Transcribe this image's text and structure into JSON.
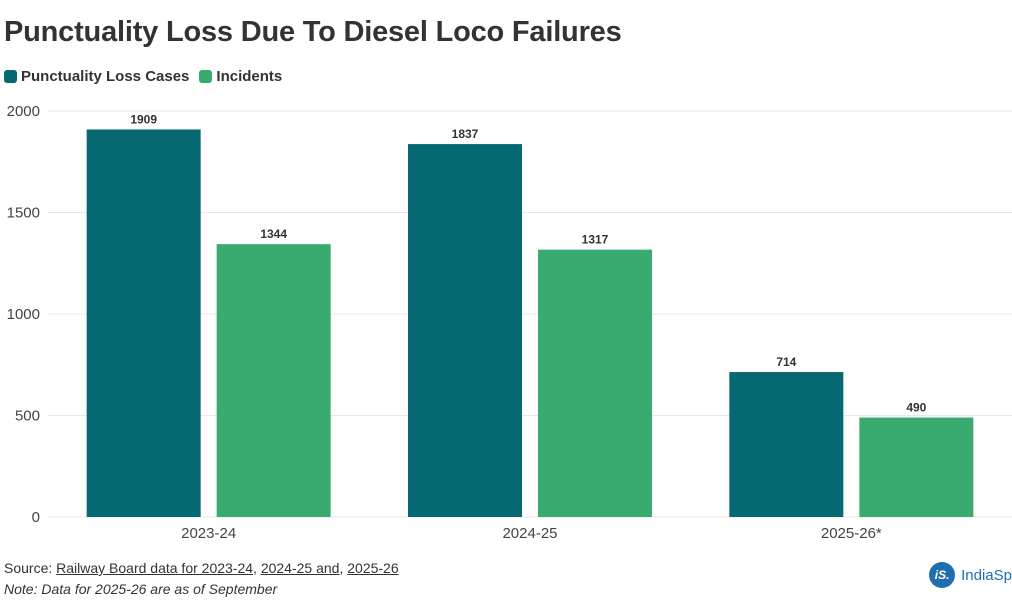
{
  "header": {
    "title": "Punctuality Loss Due To Diesel Loco Failures"
  },
  "colors": {
    "series1": "#066972",
    "series2": "#3aab6e",
    "grid": "#e8e8e8",
    "axis_text": "#444444",
    "brand": "#1f6fb0"
  },
  "chart_data": {
    "type": "bar",
    "title": "Punctuality Loss Due To Diesel Loco Failures",
    "xlabel": "",
    "ylabel": "",
    "categories": [
      "2023-24",
      "2024-25",
      "2025-26*"
    ],
    "series": [
      {
        "name": "Punctuality Loss Cases",
        "values": [
          1909,
          1837,
          714
        ]
      },
      {
        "name": "Incidents",
        "values": [
          1344,
          1317,
          490
        ]
      }
    ],
    "ylim": [
      0,
      2000
    ],
    "yticks": [
      0,
      500,
      1000,
      1500,
      2000
    ],
    "grid": true,
    "legend": "top-left"
  },
  "footer": {
    "source_prefix": "Source: ",
    "source_link1": "Railway Board data for 2023-24",
    "sep1": ", ",
    "source_link2": "2024-25 and",
    "sep2": ", ",
    "source_link3": "2025-26",
    "note": "Note: Data for 2025-26 are as of September"
  },
  "brand": {
    "logo_text": "iS.",
    "name": "IndiaSp"
  }
}
